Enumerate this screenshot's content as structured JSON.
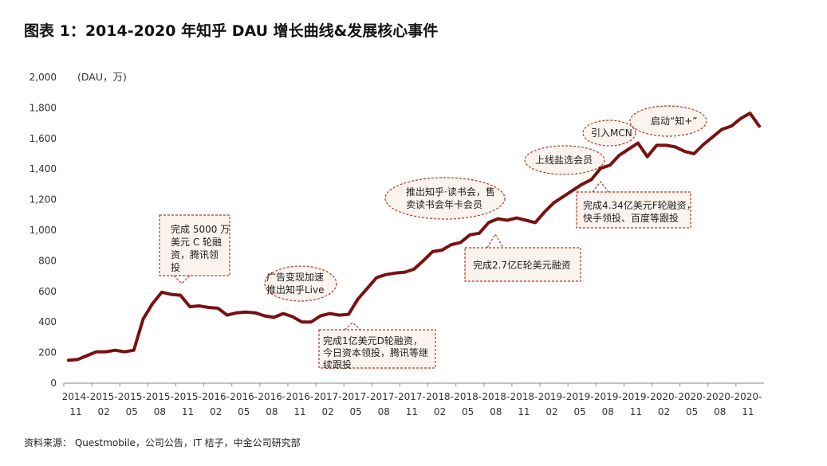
{
  "title": "图表 1：2014-2020 年知乎 DAU 增长曲线&发展核心事件",
  "source": "资料来源： Questmobile，公司公告，IT 桔子，中金公司研究部",
  "colors": {
    "line": "#7a1010",
    "annotation_border": "#b73a2a",
    "annotation_fill": "#fbf3ee"
  },
  "chart_data": {
    "type": "line",
    "unit_label": "(DAU，万)",
    "ylim": [
      0,
      2000
    ],
    "yticks": [
      "0",
      "200",
      "400",
      "600",
      "800",
      "1,000",
      "1,200",
      "1,400",
      "1,600",
      "1,800",
      "2,000"
    ],
    "xtick_labels": [
      [
        "2014-",
        "11"
      ],
      [
        "2015-",
        "02"
      ],
      [
        "2015-",
        "05"
      ],
      [
        "2015-",
        "08"
      ],
      [
        "2015-",
        "11"
      ],
      [
        "2016-",
        "02"
      ],
      [
        "2016-",
        "05"
      ],
      [
        "2016-",
        "08"
      ],
      [
        "2016-",
        "11"
      ],
      [
        "2017-",
        "02"
      ],
      [
        "2017-",
        "05"
      ],
      [
        "2017-",
        "08"
      ],
      [
        "2017-",
        "11"
      ],
      [
        "2018-",
        "02"
      ],
      [
        "2018-",
        "05"
      ],
      [
        "2018-",
        "08"
      ],
      [
        "2018-",
        "11"
      ],
      [
        "2019-",
        "02"
      ],
      [
        "2019-",
        "05"
      ],
      [
        "2019-",
        "08"
      ],
      [
        "2019-",
        "11"
      ],
      [
        "2020-",
        "02"
      ],
      [
        "2020-",
        "05"
      ],
      [
        "2020-",
        "08"
      ],
      [
        "2020-",
        "11"
      ]
    ],
    "series": [
      {
        "values": [
          150,
          155,
          180,
          205,
          205,
          215,
          205,
          215,
          420,
          520,
          595,
          580,
          575,
          500,
          505,
          495,
          490,
          445,
          460,
          465,
          460,
          440,
          430,
          455,
          435,
          400,
          400,
          440,
          455,
          445,
          450,
          550,
          620,
          690,
          710,
          720,
          725,
          745,
          800,
          860,
          870,
          905,
          920,
          970,
          980,
          1050,
          1075,
          1065,
          1080,
          1065,
          1050,
          1120,
          1180,
          1220,
          1260,
          1300,
          1330,
          1405,
          1425,
          1490,
          1530,
          1570,
          1480,
          1555,
          1555,
          1545,
          1515,
          1500,
          1560,
          1610,
          1660,
          1680,
          1730,
          1765,
          1680
        ]
      }
    ],
    "annotations": [
      {
        "lines": [
          "完成 5000 万",
          "美元 C 轮融",
          "资，腾讯领",
          "投"
        ]
      },
      {
        "lines": [
          "广告变现加速",
          "推出知乎Live"
        ]
      },
      {
        "lines": [
          "完成1亿美元D轮融资，",
          "今日资本领投，腾讯等继",
          "续跟投"
        ]
      },
      {
        "lines": [
          "推出知乎·读书会，售",
          "卖读书会年卡会员"
        ]
      },
      {
        "lines": [
          "完成2.7亿E轮美元融资"
        ]
      },
      {
        "lines": [
          "上线盐选会员"
        ]
      },
      {
        "lines": [
          "引入MCN"
        ]
      },
      {
        "lines": [
          "启动“知+”"
        ]
      },
      {
        "lines": [
          "完成4.34亿美元F轮融资，",
          "快手领投、百度等跟投"
        ]
      }
    ]
  }
}
